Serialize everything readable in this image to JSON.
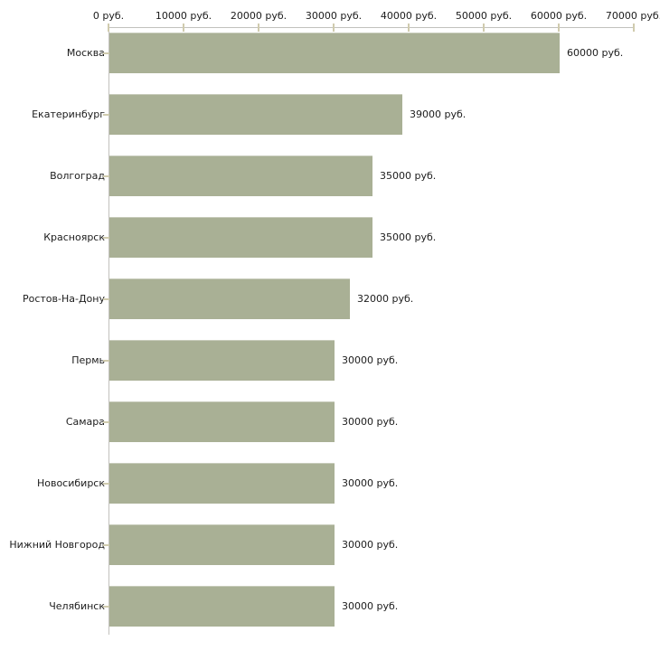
{
  "chart_data": {
    "type": "bar",
    "orientation": "horizontal",
    "title": "",
    "categories": [
      "Москва",
      "Екатеринбург",
      "Волгоград",
      "Красноярск",
      "Ростов-На-Дону",
      "Пермь",
      "Самара",
      "Новосибирск",
      "Нижний Новгород",
      "Челябинск"
    ],
    "values": [
      60000,
      39000,
      35000,
      35000,
      32000,
      30000,
      30000,
      30000,
      30000,
      30000
    ],
    "value_labels": [
      "60000 руб.",
      "39000 руб.",
      "35000 руб.",
      "35000 руб.",
      "32000 руб.",
      "30000 руб.",
      "30000 руб.",
      "30000 руб.",
      "30000 руб.",
      "30000 руб."
    ],
    "x_tick_labels": [
      "0 руб.",
      "10000 руб.",
      "20000 руб.",
      "30000 руб.",
      "40000 руб.",
      "50000 руб.",
      "60000 руб.",
      "70000 руб."
    ],
    "x_tick_values": [
      0,
      10000,
      20000,
      30000,
      40000,
      50000,
      60000,
      70000
    ],
    "xlim": [
      0,
      70000
    ],
    "unit": "руб.",
    "xlabel": "",
    "ylabel": "",
    "legend": "none",
    "grid": false,
    "colors": {
      "bar": "#a9b095",
      "axis_line": "#c2c1bd",
      "tick_mark": "#d0cbae",
      "text": "#1c1c1c",
      "background": "#ffffff"
    }
  }
}
